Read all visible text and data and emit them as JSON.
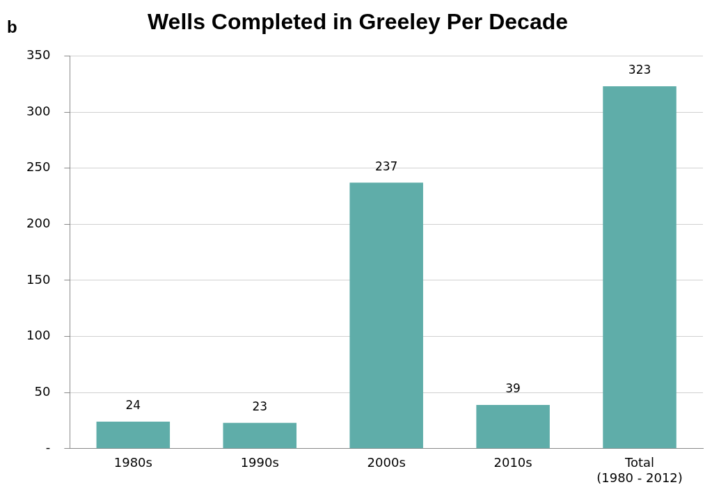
{
  "chart_data": {
    "type": "bar",
    "title": "Wells Completed in Greeley Per Decade",
    "annotations": [
      "b"
    ],
    "categories": [
      "1980s",
      "1990s",
      "2000s",
      "2010s",
      "Total\n(1980 - 2012)"
    ],
    "values": [
      24,
      23,
      237,
      39,
      323
    ],
    "color": "#5fada9",
    "ylim": [
      0,
      350
    ],
    "yticks": [
      {
        "value": 0,
        "label": "-"
      },
      50,
      100,
      150,
      200,
      250,
      300,
      350
    ],
    "grid": "y",
    "data_labels": true,
    "legend": false
  }
}
